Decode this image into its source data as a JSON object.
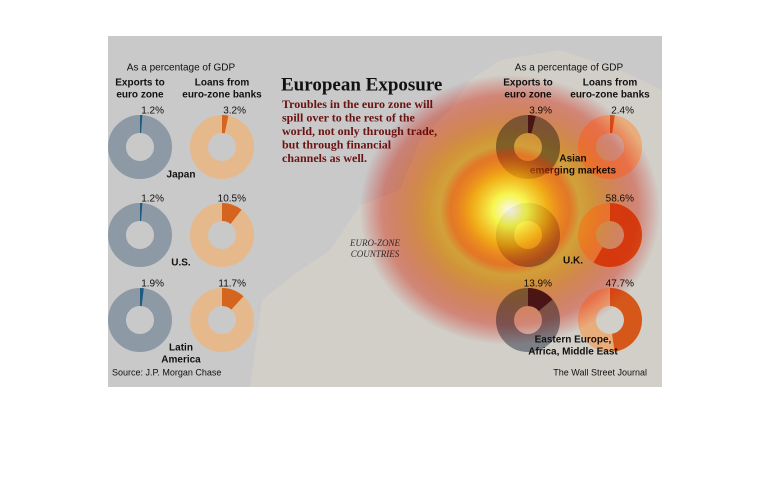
{
  "title": "European Exposure",
  "subtitle_lines": [
    "Troubles in the euro zone will",
    "spill over to the rest of the",
    "world, not only through trade,",
    "but through financial",
    "channels as well."
  ],
  "map_label_lines": [
    "EURO-ZONE",
    "COUNTRIES"
  ],
  "panels": [
    {
      "note": "As a percentage of GDP",
      "columns": [
        [
          "Exports to",
          "euro zone"
        ],
        [
          "Loans from",
          "euro-zone banks"
        ]
      ],
      "rows": [
        {
          "region_lines": [
            "Japan"
          ],
          "values": [
            1.2,
            3.2
          ],
          "value_labels": [
            "1.2%",
            "3.2%"
          ]
        },
        {
          "region_lines": [
            "U.S."
          ],
          "values": [
            1.2,
            10.5
          ],
          "value_labels": [
            "1.2%",
            "10.5%"
          ]
        },
        {
          "region_lines": [
            "Latin",
            "America"
          ],
          "values": [
            1.9,
            11.7
          ],
          "value_labels": [
            "1.9%",
            "11.7%"
          ]
        }
      ]
    },
    {
      "note": "As a percentage of GDP",
      "columns": [
        [
          "Exports to",
          "euro zone"
        ],
        [
          "Loans from",
          "euro-zone banks"
        ]
      ],
      "rows": [
        {
          "region_lines": [
            "Asian",
            "emerging markets"
          ],
          "values": [
            3.9,
            2.4
          ],
          "value_labels": [
            "3.9%",
            "2.4%"
          ]
        },
        {
          "region_lines": [
            "U.K."
          ],
          "values": [
            null,
            58.6
          ],
          "value_labels": [
            null,
            "58.6%"
          ]
        },
        {
          "region_lines": [
            "Eastern Europe,",
            "Africa, Middle East"
          ],
          "values": [
            13.9,
            47.7
          ],
          "value_labels": [
            "13.9%",
            "47.7%"
          ]
        }
      ]
    }
  ],
  "source": "Source: J.P. Morgan Chase",
  "credit": "The Wall Street Journal"
}
